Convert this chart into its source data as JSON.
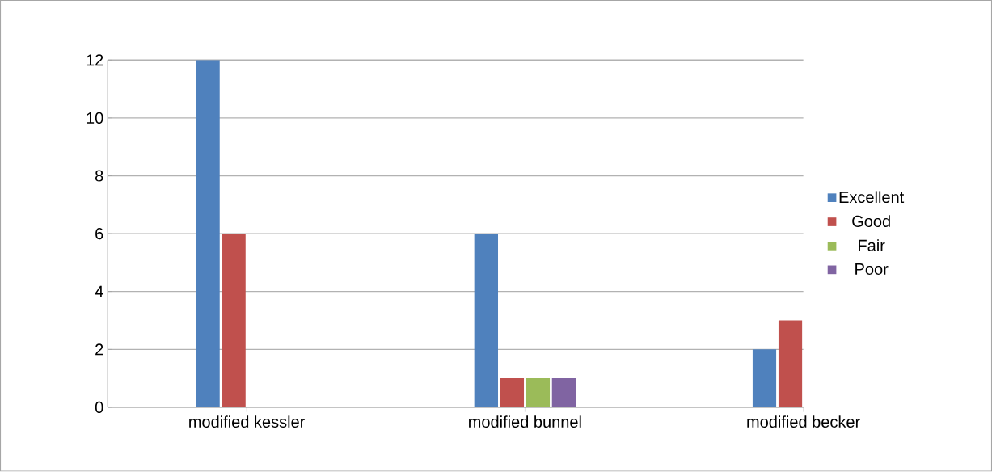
{
  "chart_data": {
    "type": "bar",
    "categories": [
      "modified kessler",
      "modified bunnel",
      "modified becker"
    ],
    "series": [
      {
        "name": "Excellent",
        "color": "#4f81bd",
        "values": [
          12,
          6,
          2
        ]
      },
      {
        "name": "Good",
        "color": "#c0504d",
        "values": [
          6,
          1,
          3
        ]
      },
      {
        "name": "Fair",
        "color": "#9bbb59",
        "values": [
          0,
          1,
          0
        ]
      },
      {
        "name": "Poor",
        "color": "#8064a2",
        "values": [
          0,
          1,
          null
        ]
      }
    ],
    "ylim": [
      0,
      12
    ],
    "yticks": [
      0,
      2,
      4,
      6,
      8,
      10,
      12
    ],
    "grid": "y",
    "legend": "right"
  }
}
